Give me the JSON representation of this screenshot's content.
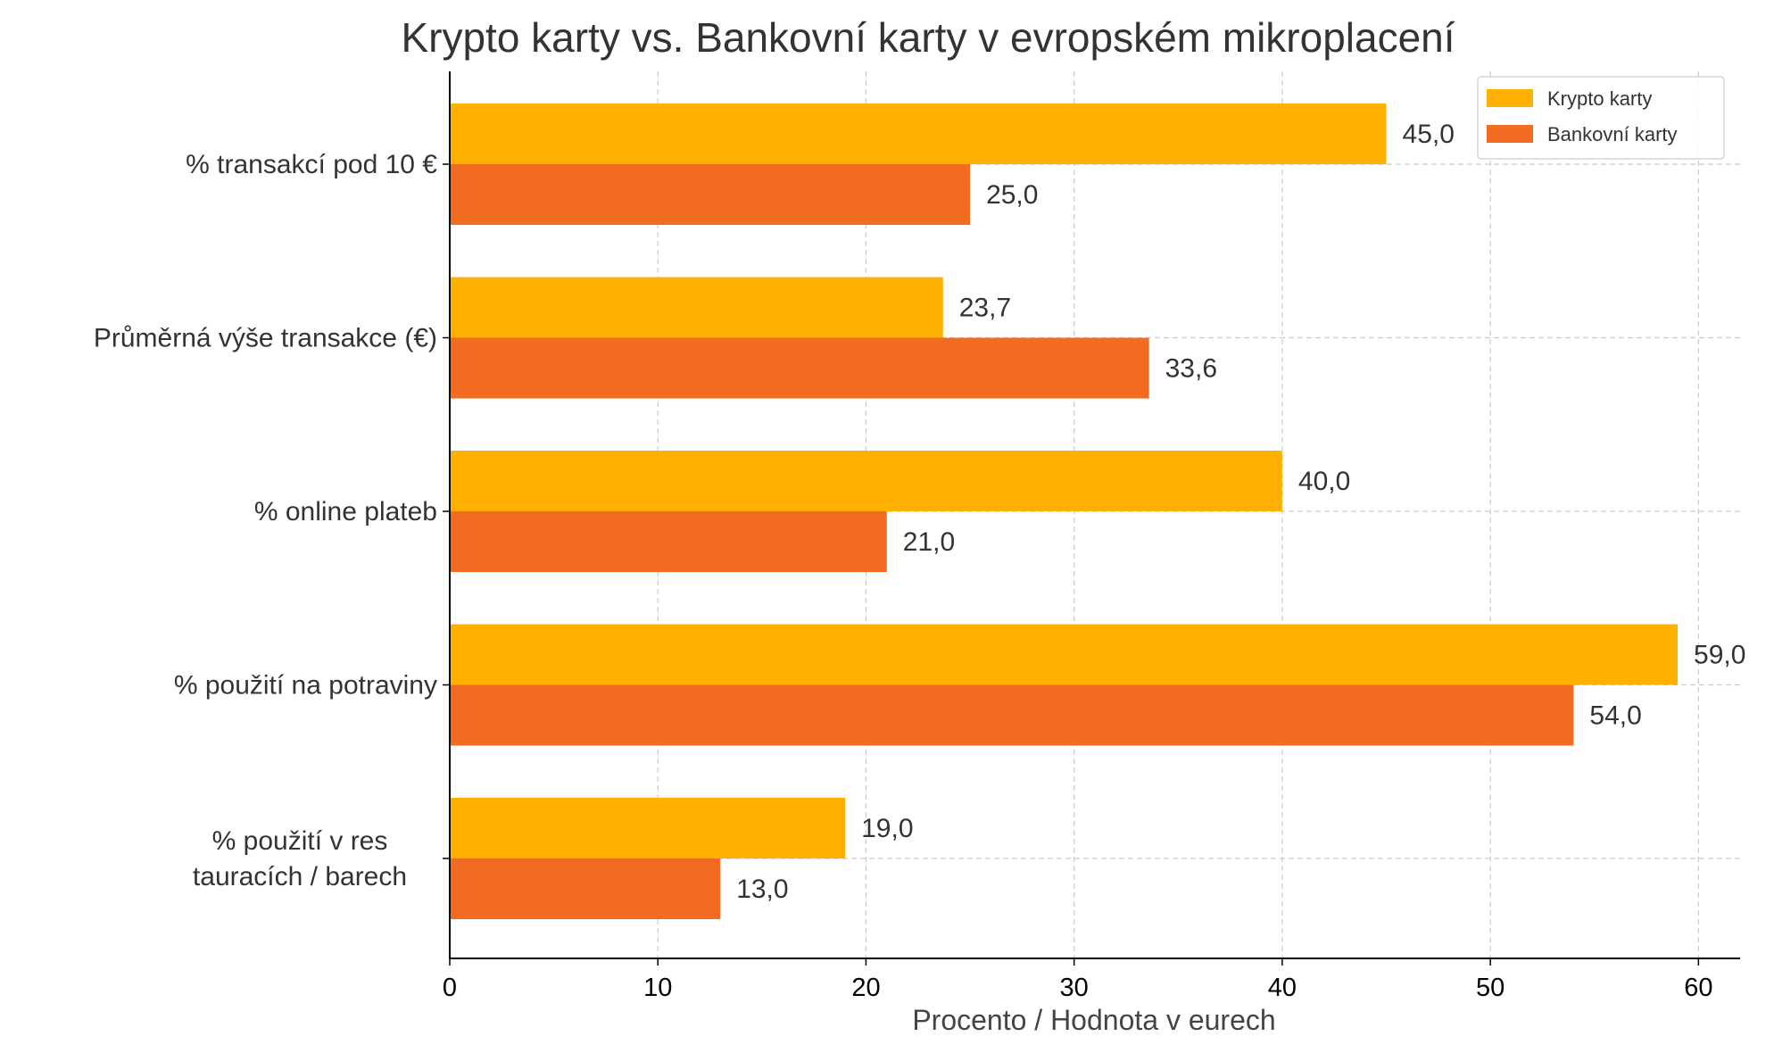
{
  "chart_data": {
    "type": "bar",
    "orientation": "horizontal",
    "title": "Krypto karty vs. Bankovní karty v evropském mikroplacení",
    "xlabel": "Procento / Hodnota v eurech",
    "ylabel": "",
    "xlim": [
      0,
      62
    ],
    "xticks": [
      0,
      10,
      20,
      30,
      40,
      50,
      60
    ],
    "grid": true,
    "legend_position": "top-right",
    "categories": [
      [
        "% transakcí pod 10 €"
      ],
      [
        "Průměrná výše transakce (€)"
      ],
      [
        "% online plateb"
      ],
      [
        "% použití na potraviny"
      ],
      [
        "% použití v res",
        "tauracích / barech"
      ]
    ],
    "series": [
      {
        "name": "Krypto karty",
        "color": "#FFB000",
        "values": [
          45.0,
          23.7,
          40.0,
          59.0,
          19.0
        ],
        "labels": [
          "45,0",
          "23,7",
          "40,0",
          "59,0",
          "19,0"
        ]
      },
      {
        "name": "Bankovní karty",
        "color": "#F26B21",
        "values": [
          25.0,
          33.6,
          21.0,
          54.0,
          13.0
        ],
        "labels": [
          "25,0",
          "33,6",
          "21,0",
          "54,0",
          "13,0"
        ]
      }
    ]
  }
}
